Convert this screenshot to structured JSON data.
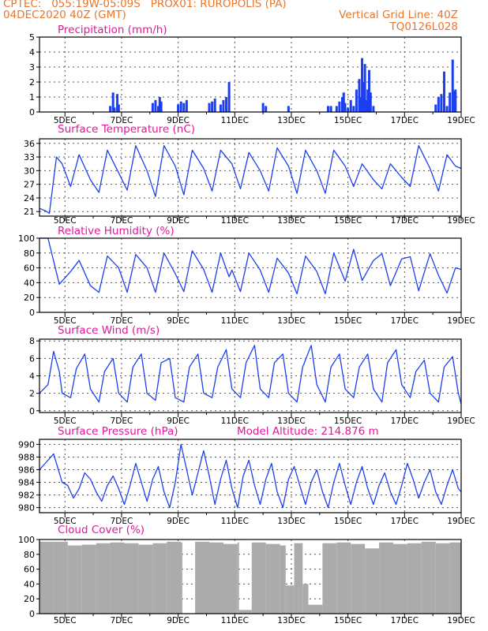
{
  "header": {
    "line1_left": "CPTEC:   055:19W-05:09S   PROX01: RUROPOLIS (PA)",
    "line2_left": "04DEC2020 40Z (GMT)",
    "line2_right": "Vertical Grid Line: 40Z",
    "line3_right": "TQ0126L028"
  },
  "x_tick_labels": [
    "5DEC",
    "7DEC",
    "9DEC",
    "11DEC",
    "13DEC",
    "15DEC",
    "17DEC",
    "19DEC"
  ],
  "colors": {
    "header": "#e8762b",
    "title": "#e0189a",
    "line": "#1c3ff0",
    "bar": "#1c3ff0",
    "cloud": "#ababab",
    "grid": "#555555"
  },
  "chart_data": [
    {
      "type": "bar",
      "title": "Precipitation (mm/h)",
      "ylim": [
        0,
        5
      ],
      "yticks": [
        0,
        1,
        2,
        3,
        4,
        5
      ],
      "xlim_days": [
        4.1,
        19.0
      ],
      "x": [
        6.6,
        6.7,
        6.75,
        6.85,
        6.9,
        8.1,
        8.2,
        8.3,
        8.35,
        8.4,
        9.0,
        9.1,
        9.2,
        9.3,
        10.1,
        10.2,
        10.3,
        10.5,
        10.6,
        10.7,
        10.8,
        12.0,
        12.1,
        12.9,
        14.3,
        14.4,
        14.6,
        14.7,
        14.8,
        14.85,
        14.9,
        15.0,
        15.1,
        15.2,
        15.3,
        15.4,
        15.45,
        15.5,
        15.55,
        15.6,
        15.65,
        15.7,
        15.75,
        15.8,
        15.9,
        18.1,
        18.2,
        18.3,
        18.4,
        18.5,
        18.6,
        18.7,
        18.75,
        18.8
      ],
      "values": [
        0.4,
        1.3,
        0.3,
        1.2,
        0.5,
        0.6,
        0.8,
        0.4,
        1.0,
        0.7,
        0.5,
        0.7,
        0.6,
        0.8,
        0.6,
        0.7,
        0.9,
        0.5,
        0.8,
        1.0,
        2.0,
        0.6,
        0.4,
        0.4,
        0.4,
        0.4,
        0.4,
        0.7,
        1.0,
        1.3,
        0.6,
        0.3,
        0.8,
        0.4,
        1.5,
        2.2,
        1.0,
        3.6,
        2.0,
        3.2,
        0.8,
        1.5,
        2.8,
        1.3,
        0.4,
        0.5,
        1.0,
        1.2,
        2.7,
        0.4,
        1.3,
        3.5,
        1.4,
        1.5
      ]
    },
    {
      "type": "line",
      "title": "Surface Temperature (nC)",
      "ylim": [
        20,
        37
      ],
      "yticks": [
        21,
        24,
        27,
        30,
        33,
        36
      ],
      "xlim_days": [
        4.1,
        19.0
      ],
      "x": [
        4.1,
        4.3,
        4.45,
        4.7,
        4.9,
        5.2,
        5.5,
        5.9,
        6.2,
        6.5,
        6.9,
        7.2,
        7.5,
        7.9,
        8.2,
        8.5,
        8.9,
        9.2,
        9.5,
        9.9,
        10.2,
        10.5,
        10.9,
        11.2,
        11.5,
        11.9,
        12.2,
        12.5,
        12.9,
        13.2,
        13.5,
        13.9,
        14.2,
        14.5,
        14.9,
        15.2,
        15.5,
        15.9,
        16.2,
        16.5,
        16.9,
        17.2,
        17.5,
        17.9,
        18.2,
        18.5,
        18.8,
        19.0
      ],
      "values": [
        21.7,
        21.2,
        20.6,
        33.0,
        31.5,
        26.5,
        33.5,
        28.0,
        25.2,
        34.5,
        29.5,
        25.7,
        35.5,
        30.0,
        24.3,
        35.5,
        31.0,
        24.7,
        34.5,
        30.5,
        25.5,
        34.5,
        31.5,
        26.0,
        34.0,
        30.0,
        25.5,
        35.0,
        31.0,
        25.0,
        34.5,
        30.0,
        25.0,
        34.5,
        31.0,
        26.5,
        31.5,
        28.0,
        26.0,
        31.5,
        28.5,
        26.5,
        35.5,
        30.5,
        25.5,
        33.5,
        31.0,
        30.5
      ]
    },
    {
      "type": "line",
      "title": "Relative Humidity (%)",
      "ylim": [
        0,
        100
      ],
      "yticks": [
        0,
        20,
        40,
        60,
        80,
        100
      ],
      "xlim_days": [
        4.1,
        19.0
      ],
      "x": [
        4.1,
        4.4,
        4.8,
        5.2,
        5.5,
        5.9,
        6.2,
        6.5,
        6.9,
        7.2,
        7.5,
        7.9,
        8.2,
        8.5,
        8.9,
        9.2,
        9.5,
        9.9,
        10.2,
        10.5,
        10.8,
        10.9,
        11.2,
        11.5,
        11.9,
        12.2,
        12.5,
        12.9,
        13.2,
        13.5,
        13.9,
        14.2,
        14.5,
        14.9,
        15.2,
        15.5,
        15.9,
        16.2,
        16.5,
        16.9,
        17.2,
        17.5,
        17.9,
        18.2,
        18.5,
        18.8,
        19.0
      ],
      "values": [
        100,
        100,
        38,
        55,
        70,
        36,
        27,
        76,
        60,
        27,
        78,
        60,
        27,
        80,
        52,
        28,
        83,
        58,
        27,
        80,
        48,
        57,
        28,
        80,
        57,
        27,
        73,
        53,
        25,
        76,
        55,
        25,
        80,
        42,
        85,
        43,
        70,
        79,
        36,
        72,
        75,
        29,
        79,
        50,
        26,
        60,
        58
      ]
    },
    {
      "type": "line",
      "title": "Surface Wind (m/s)",
      "ylim": [
        -0.2,
        8.2
      ],
      "yticks": [
        0,
        2,
        4,
        6,
        8
      ],
      "xlim_days": [
        4.1,
        19.0
      ],
      "x": [
        4.1,
        4.4,
        4.6,
        4.8,
        4.9,
        5.2,
        5.4,
        5.7,
        5.9,
        6.2,
        6.4,
        6.7,
        6.9,
        7.2,
        7.4,
        7.7,
        7.9,
        8.2,
        8.4,
        8.7,
        8.9,
        9.2,
        9.4,
        9.7,
        9.9,
        10.2,
        10.4,
        10.7,
        10.9,
        11.2,
        11.4,
        11.7,
        11.9,
        12.2,
        12.4,
        12.7,
        12.9,
        13.2,
        13.4,
        13.7,
        13.9,
        14.2,
        14.4,
        14.7,
        14.9,
        15.2,
        15.4,
        15.7,
        15.9,
        16.2,
        16.4,
        16.7,
        16.9,
        17.2,
        17.4,
        17.7,
        17.9,
        18.2,
        18.4,
        18.7,
        18.9,
        19.0
      ],
      "values": [
        2.0,
        3.0,
        6.8,
        4.5,
        2.0,
        1.5,
        4.8,
        6.5,
        2.5,
        1.0,
        4.5,
        6.0,
        2.0,
        1.0,
        5.0,
        6.5,
        2.0,
        1.2,
        5.5,
        6.0,
        1.5,
        1.0,
        5.0,
        6.5,
        2.0,
        1.5,
        5.0,
        7.0,
        2.5,
        1.5,
        5.5,
        7.5,
        2.5,
        1.5,
        5.5,
        6.5,
        2.0,
        1.0,
        5.0,
        7.5,
        3.0,
        1.0,
        5.0,
        6.5,
        2.5,
        1.5,
        5.0,
        6.5,
        2.5,
        1.0,
        5.5,
        7.0,
        3.0,
        1.5,
        4.5,
        5.8,
        2.0,
        1.0,
        5.0,
        6.2,
        2.0,
        0.8
      ]
    },
    {
      "type": "line",
      "title": "Surface Pressure (hPa)",
      "annotation": "Model Altitude: 214.876 m",
      "ylim": [
        979.2,
        990.8
      ],
      "yticks": [
        980,
        982,
        984,
        986,
        988,
        990
      ],
      "xlim_days": [
        4.1,
        19.0
      ],
      "x": [
        4.1,
        4.3,
        4.6,
        4.9,
        5.1,
        5.3,
        5.5,
        5.7,
        5.9,
        6.1,
        6.3,
        6.5,
        6.7,
        6.9,
        7.1,
        7.3,
        7.5,
        7.7,
        7.9,
        8.1,
        8.3,
        8.5,
        8.7,
        8.9,
        9.1,
        9.3,
        9.5,
        9.7,
        9.9,
        10.1,
        10.3,
        10.5,
        10.7,
        10.9,
        11.1,
        11.3,
        11.5,
        11.7,
        11.9,
        12.1,
        12.3,
        12.5,
        12.7,
        12.9,
        13.1,
        13.3,
        13.5,
        13.7,
        13.9,
        14.1,
        14.3,
        14.5,
        14.7,
        14.9,
        15.1,
        15.3,
        15.5,
        15.7,
        15.9,
        16.1,
        16.3,
        16.5,
        16.7,
        16.9,
        17.1,
        17.3,
        17.5,
        17.7,
        17.9,
        18.1,
        18.3,
        18.5,
        18.7,
        18.9,
        19.0
      ],
      "values": [
        986.0,
        987.0,
        988.5,
        984.0,
        983.5,
        981.5,
        983.0,
        985.5,
        984.5,
        982.5,
        981.0,
        983.5,
        985.0,
        983.0,
        980.5,
        983.5,
        987.0,
        984.0,
        981.0,
        984.5,
        986.5,
        982.5,
        980.0,
        984.0,
        990.0,
        986.0,
        982.0,
        985.5,
        989.0,
        985.0,
        980.5,
        984.5,
        987.5,
        983.0,
        980.0,
        985.0,
        987.5,
        983.5,
        980.5,
        984.5,
        987.0,
        982.5,
        980.0,
        984.5,
        986.5,
        983.5,
        980.5,
        984.0,
        986.0,
        982.5,
        980.0,
        984.0,
        987.0,
        983.5,
        980.5,
        984.0,
        986.5,
        983.0,
        980.5,
        983.5,
        985.5,
        982.5,
        980.5,
        983.5,
        987.0,
        984.5,
        981.5,
        984.0,
        986.0,
        982.5,
        980.5,
        983.5,
        986.0,
        983.0,
        982.5
      ]
    },
    {
      "type": "area",
      "title": "Cloud Cover (%)",
      "ylim": [
        0,
        100
      ],
      "yticks": [
        0,
        20,
        40,
        60,
        80,
        100
      ],
      "xlim_days": [
        4.1,
        19.0
      ],
      "x": [
        4.1,
        4.6,
        5.1,
        5.6,
        6.1,
        6.6,
        7.1,
        7.6,
        8.1,
        8.6,
        9.1,
        9.15,
        9.6,
        10.1,
        10.6,
        11.1,
        11.15,
        11.6,
        12.1,
        12.6,
        12.8,
        13.1,
        13.4,
        13.6,
        14.1,
        14.6,
        15.1,
        15.6,
        16.1,
        16.6,
        17.1,
        17.6,
        18.1,
        18.6,
        19.0
      ],
      "values": [
        97,
        97,
        92,
        93,
        95,
        96,
        95,
        93,
        95,
        97,
        96,
        0,
        97,
        96,
        94,
        96,
        5,
        96,
        94,
        92,
        38,
        95,
        40,
        12,
        95,
        96,
        94,
        88,
        96,
        94,
        95,
        97,
        95,
        96,
        95
      ]
    }
  ]
}
